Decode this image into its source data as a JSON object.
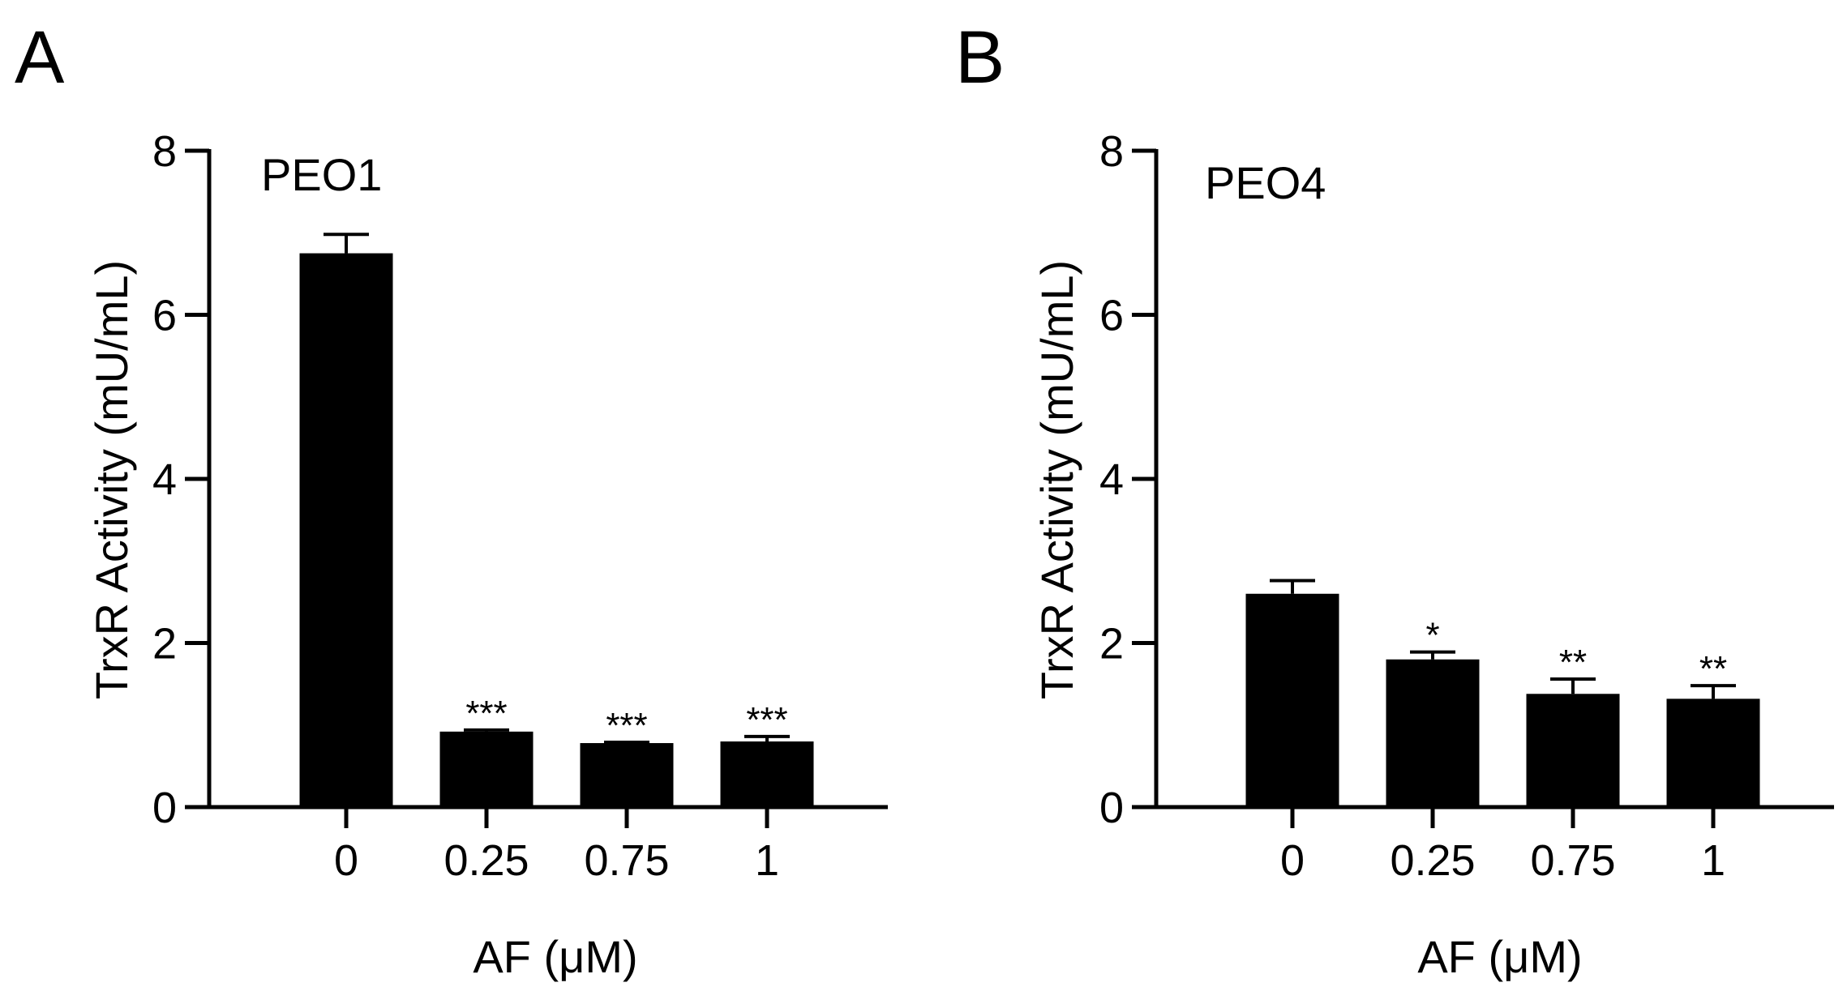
{
  "chart_data": [
    {
      "panel": "A",
      "type": "bar",
      "inset_label": "PEO1",
      "categories": [
        "0",
        "0.25",
        "0.75",
        "1"
      ],
      "values": [
        6.75,
        0.92,
        0.78,
        0.8
      ],
      "errors": [
        0.23,
        0.02,
        0.01,
        0.06
      ],
      "significance": [
        "",
        "***",
        "***",
        "***"
      ],
      "xlabel": "AF (μM)",
      "ylabel": "TrxR Activity (mU/mL)",
      "ylim": [
        0,
        8
      ],
      "yticks": [
        "0",
        "2",
        "4",
        "6",
        "8"
      ],
      "grid": false,
      "color": "#000000"
    },
    {
      "panel": "B",
      "type": "bar",
      "inset_label": "PEO4",
      "categories": [
        "0",
        "0.25",
        "0.75",
        "1"
      ],
      "values": [
        2.6,
        1.8,
        1.38,
        1.32
      ],
      "errors": [
        0.16,
        0.09,
        0.18,
        0.16
      ],
      "significance": [
        "",
        "*",
        "**",
        "**"
      ],
      "xlabel": "AF (μM)",
      "ylabel": "TrxR Activity (mU/mL)",
      "ylim": [
        0,
        8
      ],
      "yticks": [
        "0",
        "2",
        "4",
        "6",
        "8"
      ],
      "grid": false,
      "color": "#000000"
    }
  ]
}
